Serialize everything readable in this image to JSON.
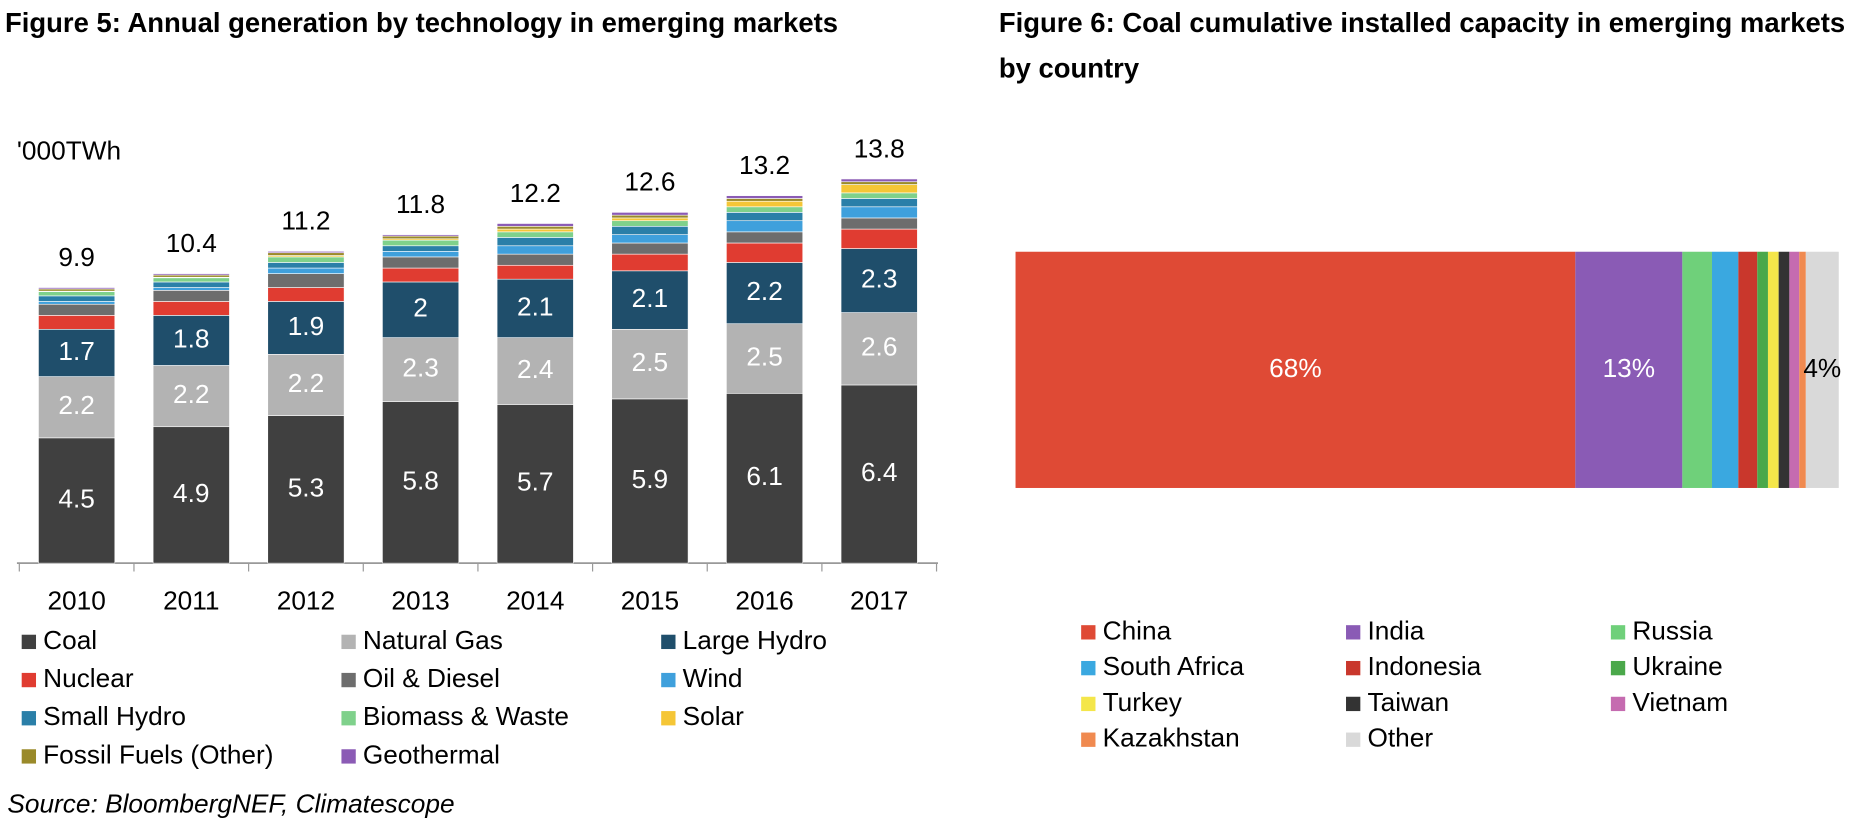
{
  "chart_data": [
    {
      "type": "stacked_bar",
      "title": "Figure 5:  Annual generation by technology in emerging markets",
      "y_label": "'000TWh",
      "categories": [
        "2010",
        "2011",
        "2012",
        "2013",
        "2014",
        "2015",
        "2016",
        "2017"
      ],
      "totals": [
        9.9,
        10.4,
        11.2,
        11.8,
        12.2,
        12.6,
        13.2,
        13.8
      ],
      "series": [
        {
          "name": "Coal",
          "color": "#404040",
          "data_labels": true,
          "values": [
            4.5,
            4.9,
            5.3,
            5.8,
            5.7,
            5.9,
            6.1,
            6.4
          ]
        },
        {
          "name": "Natural Gas",
          "color": "#b3b3b3",
          "data_labels": true,
          "values": [
            2.2,
            2.2,
            2.2,
            2.3,
            2.4,
            2.5,
            2.5,
            2.6
          ]
        },
        {
          "name": "Large Hydro",
          "color": "#1f4e6b",
          "data_labels": true,
          "values": [
            1.7,
            1.8,
            1.9,
            2.0,
            2.1,
            2.1,
            2.2,
            2.3
          ]
        },
        {
          "name": "Nuclear",
          "color": "#e03c31",
          "values": [
            0.5,
            0.5,
            0.5,
            0.5,
            0.5,
            0.6,
            0.7,
            0.7
          ]
        },
        {
          "name": "Oil & Diesel",
          "color": "#6d6d6d",
          "values": [
            0.4,
            0.4,
            0.5,
            0.4,
            0.4,
            0.4,
            0.4,
            0.4
          ]
        },
        {
          "name": "Wind",
          "color": "#3fa0dc",
          "values": [
            0.1,
            0.1,
            0.2,
            0.2,
            0.3,
            0.3,
            0.4,
            0.4
          ]
        },
        {
          "name": "Small Hydro",
          "color": "#2a7fa8",
          "values": [
            0.2,
            0.2,
            0.2,
            0.2,
            0.3,
            0.3,
            0.3,
            0.3
          ]
        },
        {
          "name": "Biomass & Waste",
          "color": "#7fd18b",
          "values": [
            0.15,
            0.15,
            0.2,
            0.2,
            0.2,
            0.2,
            0.2,
            0.2
          ]
        },
        {
          "name": "Solar",
          "color": "#f5c636",
          "values": [
            0.02,
            0.02,
            0.05,
            0.05,
            0.1,
            0.1,
            0.2,
            0.3
          ]
        },
        {
          "name": "Fossil Fuels (Other)",
          "color": "#9a8a2a",
          "values": [
            0.08,
            0.08,
            0.1,
            0.1,
            0.1,
            0.1,
            0.1,
            0.1
          ]
        },
        {
          "name": "Geothermal",
          "color": "#8b5bb5",
          "values": [
            0.05,
            0.05,
            0.05,
            0.05,
            0.1,
            0.1,
            0.1,
            0.1
          ]
        }
      ]
    },
    {
      "type": "stacked_barh",
      "title": "Figure 6:  Coal cumulative installed capacity in emerging markets by country",
      "series": [
        {
          "name": "China",
          "color": "#df4a35",
          "values": [
            68
          ],
          "value_labels": [
            "68%"
          ],
          "label_color": "#ffffff"
        },
        {
          "name": "India",
          "color": "#8a5bb5",
          "values": [
            13
          ],
          "value_labels": [
            "13%"
          ],
          "label_color": "#ffffff"
        },
        {
          "name": "Russia",
          "color": "#6fd07a",
          "values": [
            3.6
          ]
        },
        {
          "name": "South Africa",
          "color": "#3aa8e0",
          "values": [
            3.2
          ]
        },
        {
          "name": "Indonesia",
          "color": "#c9372c",
          "values": [
            2.3
          ]
        },
        {
          "name": "Ukraine",
          "color": "#4aa84a",
          "values": [
            1.3
          ]
        },
        {
          "name": "Turkey",
          "color": "#f4e64a",
          "values": [
            1.3
          ]
        },
        {
          "name": "Taiwan",
          "color": "#333333",
          "values": [
            1.3
          ]
        },
        {
          "name": "Vietnam",
          "color": "#c56bb0",
          "values": [
            1.2
          ]
        },
        {
          "name": "Kazakhstan",
          "color": "#f08a50",
          "values": [
            0.8
          ]
        },
        {
          "name": "Other",
          "color": "#d9d9d9",
          "values": [
            4
          ],
          "value_labels": [
            "4%"
          ],
          "label_color": "#000000"
        }
      ]
    }
  ],
  "source": "Source: BloombergNEF, Climatescope"
}
